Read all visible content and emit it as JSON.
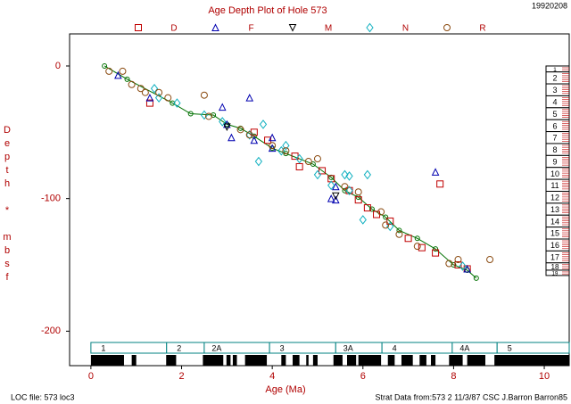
{
  "chart_data": {
    "type": "scatter",
    "title": "Age Depth Plot of Hole 573",
    "date_stamp": "19920208",
    "x_label": "Age (Ma)",
    "y_label": "Depth * mbsf",
    "xlim": [
      -0.47,
      10.55
    ],
    "ylim": [
      -226,
      24.2
    ],
    "xticks": [
      0,
      2,
      4,
      6,
      8,
      10
    ],
    "yticks": [
      0,
      -100,
      -200
    ],
    "series": [
      {
        "name": "D",
        "marker": "square",
        "color": "#c00000",
        "x": [
          1.3,
          3.6,
          3.9,
          4.5,
          4.6,
          5.1,
          5.3,
          5.7,
          5.9,
          6.1,
          6.3,
          6.6,
          7.0,
          7.3,
          7.6,
          7.7,
          8.1,
          8.3
        ],
        "values": [
          -28,
          -50,
          -56,
          -68,
          -76,
          -79,
          -85,
          -94,
          -101,
          -107,
          -112,
          -117,
          -130,
          -137,
          -141,
          -89,
          -150,
          -153
        ]
      },
      {
        "name": "F",
        "marker": "triangle",
        "color": "#0000b0",
        "x": [
          0.6,
          1.3,
          2.9,
          3.0,
          3.1,
          3.5,
          3.6,
          4.0,
          4.0,
          5.3,
          5.4,
          5.4,
          7.6,
          8.3
        ],
        "values": [
          -7,
          -24,
          -31,
          -44,
          -54,
          -24,
          -56,
          -54,
          -62,
          -100,
          -91,
          -101,
          -80,
          -153
        ]
      },
      {
        "name": "M",
        "marker": "down-triangle",
        "color": "#000000",
        "x": [
          3.0,
          5.4
        ],
        "values": [
          -46,
          -98
        ]
      },
      {
        "name": "N",
        "marker": "diamond",
        "color": "#10b0c0",
        "x": [
          1.4,
          1.5,
          1.9,
          2.5,
          2.9,
          3.5,
          3.7,
          3.8,
          4.2,
          4.3,
          4.6,
          5.0,
          5.3,
          5.6,
          5.7,
          5.7,
          6.0,
          6.1,
          6.6,
          8.2
        ],
        "values": [
          -17,
          -24,
          -28,
          -37,
          -42,
          -52,
          -72,
          -44,
          -64,
          -60,
          -70,
          -82,
          -90,
          -82,
          -83,
          -94,
          -116,
          -82,
          -121,
          -151
        ]
      },
      {
        "name": "R",
        "marker": "circle",
        "color": "#8a4a10",
        "x": [
          0.4,
          0.7,
          0.9,
          1.1,
          1.2,
          1.5,
          1.7,
          2.5,
          2.6,
          3.3,
          3.5,
          4.0,
          4.3,
          4.8,
          5.0,
          5.6,
          5.9,
          6.4,
          6.5,
          6.8,
          7.2,
          7.9,
          8.1,
          8.8
        ],
        "values": [
          -4,
          -4,
          -14,
          -17,
          -20,
          -20,
          -24,
          -22,
          -38,
          -48,
          -52,
          -60,
          -64,
          -72,
          -70,
          -91,
          -95,
          -110,
          -120,
          -127,
          -136,
          -149,
          -146,
          -146
        ]
      }
    ],
    "loc_line": {
      "color": "#007000",
      "x": [
        0.3,
        0.8,
        1.8,
        2.2,
        2.7,
        3.0,
        3.3,
        3.6,
        4.0,
        4.3,
        4.9,
        5.3,
        5.6,
        5.9,
        6.2,
        6.5,
        6.8,
        7.2,
        7.6,
        8.0,
        8.3,
        8.5
      ],
      "values": [
        0,
        -10,
        -28,
        -36,
        -37,
        -44,
        -47,
        -53,
        -62,
        -66,
        -74,
        -84,
        -94,
        -99,
        -108,
        -114,
        -124,
        -130,
        -138,
        -150,
        -154,
        -160
      ]
    },
    "chrons": [
      {
        "label": "1",
        "start": 0,
        "end": 1.67
      },
      {
        "label": "2",
        "start": 1.67,
        "end": 2.5
      },
      {
        "label": "2A",
        "start": 2.5,
        "end": 3.94
      },
      {
        "label": "3",
        "start": 3.94,
        "end": 5.4
      },
      {
        "label": "3A",
        "start": 5.4,
        "end": 6.42
      },
      {
        "label": "4",
        "start": 6.42,
        "end": 7.97
      },
      {
        "label": "4A",
        "start": 7.97,
        "end": 8.96
      },
      {
        "label": "5",
        "start": 8.96,
        "end": 10.55
      }
    ],
    "polarity_normal": [
      [
        0,
        0.73
      ],
      [
        0.9,
        1.0
      ],
      [
        1.66,
        1.88
      ],
      [
        2.47,
        2.92
      ],
      [
        2.99,
        3.08
      ],
      [
        3.13,
        3.22
      ],
      [
        3.4,
        3.88
      ],
      [
        4.2,
        4.3
      ],
      [
        4.45,
        4.6
      ],
      [
        4.75,
        4.8
      ],
      [
        4.9,
        5.0
      ],
      [
        5.35,
        5.55
      ],
      [
        5.65,
        5.85
      ],
      [
        5.9,
        6.4
      ],
      [
        6.55,
        6.7
      ],
      [
        6.85,
        7.1
      ],
      [
        7.25,
        7.4
      ],
      [
        7.5,
        7.6
      ],
      [
        7.9,
        8.2
      ],
      [
        8.3,
        8.7
      ],
      [
        8.9,
        10.55
      ]
    ],
    "cores": [
      {
        "label": "1",
        "top": 0,
        "bottom": -4.5
      },
      {
        "label": "2",
        "top": -4.5,
        "bottom": -13.5
      },
      {
        "label": "3",
        "top": -13.5,
        "bottom": -22.5
      },
      {
        "label": "4",
        "top": -22.5,
        "bottom": -31.5
      },
      {
        "label": "5",
        "top": -31.5,
        "bottom": -40.5
      },
      {
        "label": "6",
        "top": -40.5,
        "bottom": -49.5
      },
      {
        "label": "7",
        "top": -49.5,
        "bottom": -58.5
      },
      {
        "label": "8",
        "top": -58.5,
        "bottom": -67.5
      },
      {
        "label": "9",
        "top": -67.5,
        "bottom": -76.5
      },
      {
        "label": "10",
        "top": -76.5,
        "bottom": -85.5
      },
      {
        "label": "11",
        "top": -85.5,
        "bottom": -94.5
      },
      {
        "label": "12",
        "top": -94.5,
        "bottom": -103.5
      },
      {
        "label": "13",
        "top": -103.5,
        "bottom": -112.5
      },
      {
        "label": "14",
        "top": -112.5,
        "bottom": -121.5
      },
      {
        "label": "15",
        "top": -121.5,
        "bottom": -130.5
      },
      {
        "label": "16",
        "top": -130.5,
        "bottom": -139.5
      },
      {
        "label": "17",
        "top": -139.5,
        "bottom": -148.5
      },
      {
        "label": "18",
        "top": -148.5,
        "bottom": -154
      },
      {
        "label": "19",
        "top": -154,
        "bottom": -158
      }
    ],
    "footer_left": "LOC file: 573 loc3",
    "footer_right": "Strat Data from:573 2 11/3/87 CSC J.Barron Barron85"
  }
}
